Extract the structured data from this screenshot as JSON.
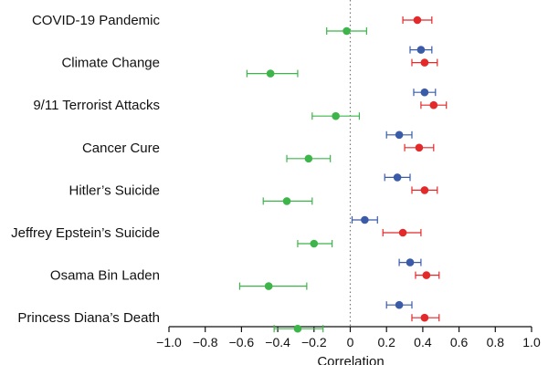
{
  "chart_data": {
    "type": "scatter",
    "xlabel": "Correlation",
    "xlim": [
      -1.0,
      1.0
    ],
    "xticks": [
      "−1.0",
      "−0.8",
      "−0.6",
      "−0.4",
      "−0.2",
      "0",
      "0.2",
      "0.4",
      "0.6",
      "0.8",
      "1.0"
    ],
    "tick_values": [
      -1.0,
      -0.8,
      -0.6,
      -0.4,
      -0.2,
      0,
      0.2,
      0.4,
      0.6,
      0.8,
      1.0
    ],
    "reference_line": 0,
    "colors": {
      "blue": "#3a5ba8",
      "red": "#e4292a",
      "green": "#3db54a"
    },
    "categories": [
      "COVID-19 Pandemic",
      "Climate Change",
      "9/11 Terrorist Attacks",
      "Cancer Cure",
      "Hitler’s Suicide",
      "Jeffrey Epstein’s Suicide",
      "Osama Bin Laden",
      "Princess Diana’s Death"
    ],
    "series": [
      {
        "color": "blue",
        "values": [
          null,
          0.39,
          0.41,
          0.27,
          0.26,
          0.08,
          0.33,
          0.27
        ],
        "err_low": [
          null,
          0.33,
          0.35,
          0.2,
          0.19,
          0.01,
          0.27,
          0.2
        ],
        "err_high": [
          null,
          0.45,
          0.47,
          0.34,
          0.33,
          0.15,
          0.39,
          0.34
        ]
      },
      {
        "color": "red",
        "values": [
          0.37,
          0.41,
          0.46,
          0.38,
          0.41,
          0.29,
          0.42,
          0.41
        ],
        "err_low": [
          0.29,
          0.34,
          0.39,
          0.3,
          0.34,
          0.18,
          0.36,
          0.34
        ],
        "err_high": [
          0.45,
          0.48,
          0.53,
          0.46,
          0.48,
          0.39,
          0.49,
          0.49
        ]
      },
      {
        "color": "green",
        "values": [
          -0.02,
          -0.44,
          -0.08,
          -0.23,
          -0.35,
          -0.2,
          -0.45,
          -0.29
        ],
        "err_low": [
          -0.13,
          -0.57,
          -0.21,
          -0.35,
          -0.48,
          -0.29,
          -0.61,
          -0.42
        ],
        "err_high": [
          0.09,
          -0.29,
          0.05,
          -0.11,
          -0.21,
          -0.1,
          -0.24,
          -0.15
        ]
      }
    ]
  }
}
